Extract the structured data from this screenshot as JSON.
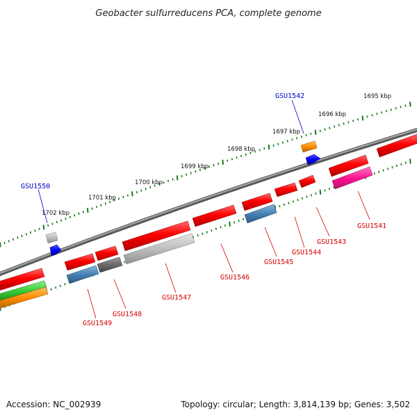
{
  "title": "Geobacter sulfurreducens PCA, complete genome",
  "footer": {
    "accession": "Accession: NC_002939",
    "summary": "Topology: circular; Length: 3,814,139 bp; Genes: 3,502"
  },
  "scale_labels": [
    "1695 kbp",
    "1696 kbp",
    "1697 kbp",
    "1698 kbp",
    "1699 kbp",
    "1700 kbp",
    "1701 kbp",
    "1702 kbp"
  ],
  "labels_above": [
    "GSU1542",
    "GSU1550"
  ],
  "labels_below": [
    "GSU1541",
    "GSU1543",
    "GSU1544",
    "GSU1545",
    "GSU1546",
    "GSU1547",
    "GSU1548",
    "GSU1549"
  ],
  "colors": {
    "cds": "#ff0000",
    "backbone": "#808080",
    "scale_tick": "#1a7a1a",
    "label_above": "#0000cc",
    "label_below": "#d40000",
    "blue_feature": "#0000ff",
    "orange_feature": "#ff8c00",
    "pink_feature": "#ff1493",
    "steel_feature": "#4682b4",
    "green_feature": "#33cc33"
  }
}
